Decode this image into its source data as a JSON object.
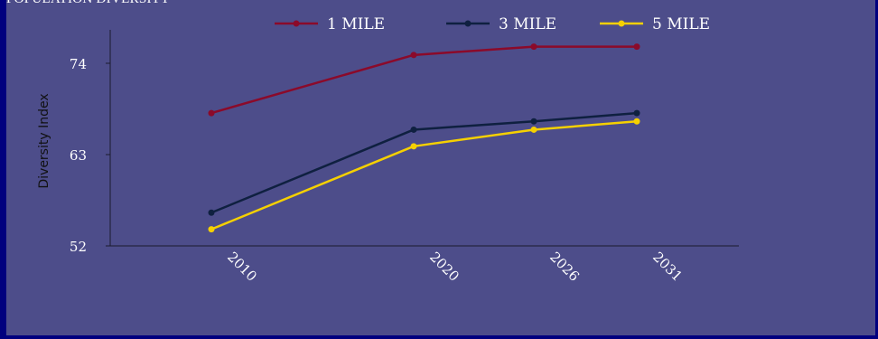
{
  "chart_data": {
    "type": "line",
    "title": "POPULATION DIVERSITY",
    "ylabel": "Diversity Index",
    "xlabel": "",
    "x": [
      "2010",
      "2020",
      "2026",
      "2031"
    ],
    "yticks": [
      52,
      63,
      74
    ],
    "ylim": [
      52,
      78
    ],
    "legend_position": "top",
    "series": [
      {
        "name": "1 MILE",
        "color": "#8b0a2a",
        "values": [
          68,
          75,
          76,
          76
        ]
      },
      {
        "name": "3 MILE",
        "color": "#0f2040",
        "values": [
          56,
          66,
          67,
          68
        ]
      },
      {
        "name": "5 MILE",
        "color": "#f5d000",
        "values": [
          54,
          64,
          66,
          67
        ]
      }
    ]
  }
}
